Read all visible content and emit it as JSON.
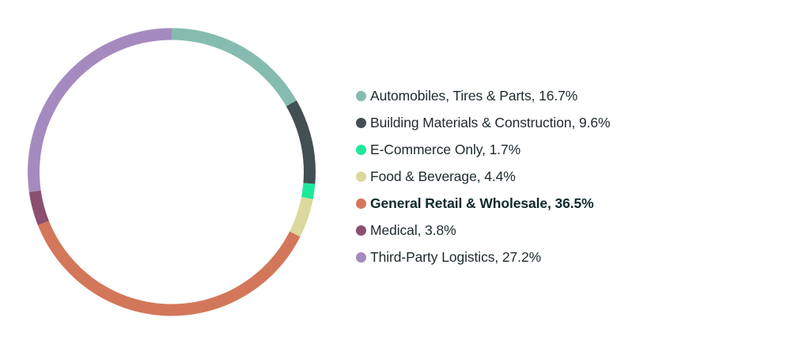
{
  "chart_data": {
    "type": "pie",
    "series": [
      {
        "values": [
          16.7,
          9.6,
          1.7,
          4.4,
          36.5,
          3.8,
          27.2
        ]
      }
    ],
    "categories": [
      "Automobiles, Tires & Parts",
      "Building Materials & Construction",
      "E-Commerce Only",
      "Food & Beverage",
      "General Retail & Wholesale",
      "Medical",
      "Third-Party Logistics"
    ],
    "legend_labels": [
      "Automobiles, Tires & Parts, 16.7%",
      "Building Materials & Construction, 9.6%",
      "E-Commerce Only, 1.7%",
      "Food & Beverage, 4.4%",
      "General Retail & Wholesale, 36.5%",
      "Medical, 3.8%",
      "Third-Party Logistics, 27.2%"
    ],
    "colors": [
      "#85bcaf",
      "#435053",
      "#1de99c",
      "#dbd99d",
      "#d3775a",
      "#8b4f6f",
      "#a58abf"
    ],
    "highlight_index": 4,
    "donut": true,
    "legend_position": "right"
  }
}
